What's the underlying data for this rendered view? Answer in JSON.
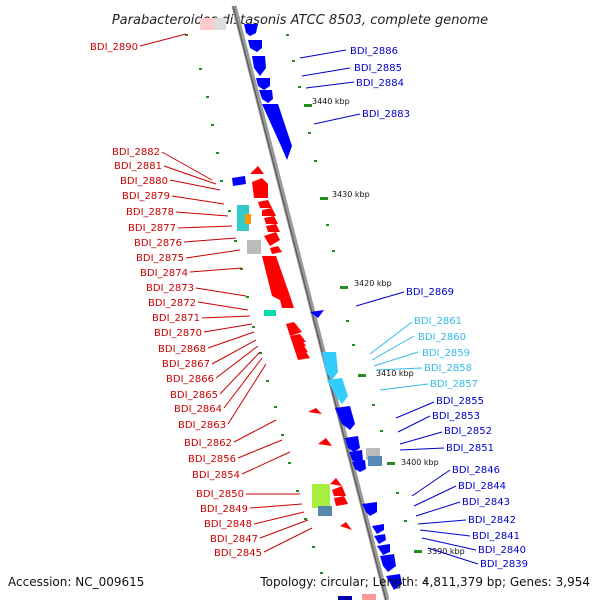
{
  "title": "Parabacteroides distasonis ATCC 8503, complete genome",
  "footer": {
    "accession": "Accession: NC_009615",
    "summary": "Topology: circular; Length: 4,811,379 bp; Genes: 3,954"
  },
  "colors": {
    "forward_gene": "#ff0000",
    "reverse_gene": "#0000ff",
    "reverse_light": "#33ccff",
    "rna": "#00aa88",
    "pseudo": "#b0b0b0",
    "backbone": "#808080",
    "tick_mark": "#228b22",
    "left_label": "#cc0000",
    "right_label": "#0000cc",
    "right_label_light": "#33bbee"
  },
  "scale_ticks": [
    "3440 kbp",
    "3430 kbp",
    "3420 kbp",
    "3410 kbp",
    "3400 kbp",
    "3390 kbp"
  ],
  "left_labels": [
    "BDI_2890",
    "BDI_2882",
    "BDI_2881",
    "BDI_2880",
    "BDI_2879",
    "BDI_2878",
    "BDI_2877",
    "BDI_2876",
    "BDI_2875",
    "BDI_2874",
    "BDI_2873",
    "BDI_2872",
    "BDI_2871",
    "BDI_2870",
    "BDI_2868",
    "BDI_2867",
    "BDI_2866",
    "BDI_2865",
    "BDI_2864",
    "BDI_2863",
    "BDI_2862",
    "BDI_2856",
    "BDI_2854",
    "BDI_2850",
    "BDI_2849",
    "BDI_2848",
    "BDI_2847",
    "BDI_2845"
  ],
  "right_labels": [
    "BDI_2886",
    "BDI_2885",
    "BDI_2884",
    "BDI_2883",
    "BDI_2869",
    "BDI_2861",
    "BDI_2860",
    "BDI_2859",
    "BDI_2858",
    "BDI_2857",
    "BDI_2855",
    "BDI_2853",
    "BDI_2852",
    "BDI_2851",
    "BDI_2846",
    "BDI_2844",
    "BDI_2843",
    "BDI_2842",
    "BDI_2841",
    "BDI_2840",
    "BDI_2839"
  ]
}
